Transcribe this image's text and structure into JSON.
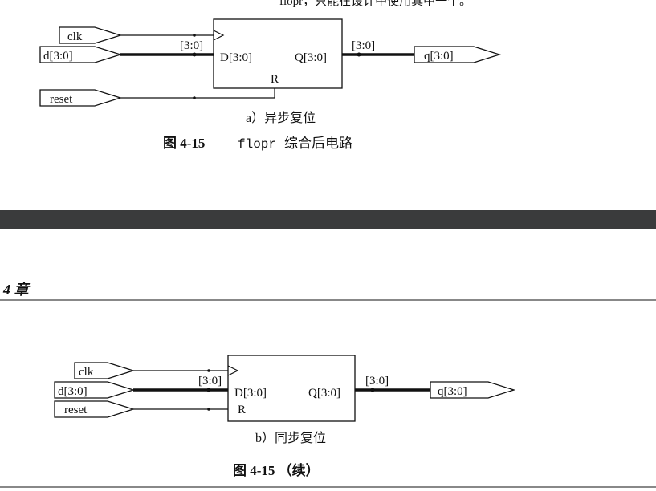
{
  "top_text": "flopr，只能在设计中使用其中一个。",
  "fig_a": {
    "ports_in": [
      "clk",
      "d[3:0]",
      "reset"
    ],
    "port_out": "q[3:0]",
    "bus_label_in": "[3:0]",
    "bus_label_out": "[3:0]",
    "pin_d": "D[3:0]",
    "pin_q": "Q[3:0]",
    "pin_r": "R",
    "subcaption": "a）异步复位",
    "caption_num": "图 4-15",
    "caption_code": "flopr",
    "caption_text": "综合后电路"
  },
  "divider_color": "#3a3b3c",
  "chapter_header": "4 章",
  "fig_b": {
    "ports_in": [
      "clk",
      "d[3:0]",
      "reset"
    ],
    "port_out": "q[3:0]",
    "bus_label_in": "[3:0]",
    "bus_label_out": "[3:0]",
    "pin_d": "D[3:0]",
    "pin_q": "Q[3:0]",
    "pin_r": "R",
    "subcaption": "b）同步复位",
    "caption": "图 4-15 （续）"
  }
}
